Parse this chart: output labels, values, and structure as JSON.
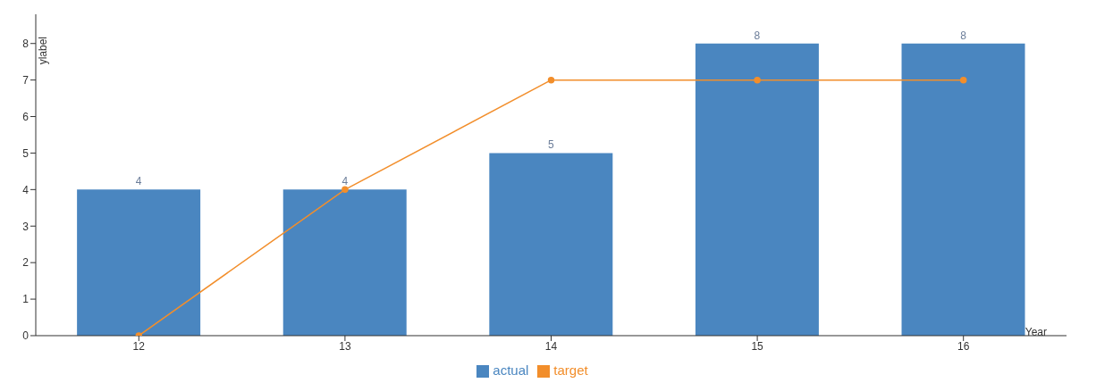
{
  "chart_data": {
    "type": "bar",
    "xlabel": "Year",
    "ylabel": "ylabel",
    "categories": [
      "12",
      "13",
      "14",
      "15",
      "16"
    ],
    "series": [
      {
        "name": "actual",
        "color": "#4a86c0",
        "values": [
          4,
          4,
          5,
          8,
          8
        ],
        "value_labels": [
          "4",
          "4",
          "5",
          "8",
          "8"
        ]
      },
      {
        "name": "target",
        "type": "line",
        "color": "#f28e2b",
        "values": [
          0,
          4,
          7,
          7,
          7
        ],
        "marker": "circle"
      }
    ],
    "ylim": [
      0,
      8.8
    ],
    "yticks": [
      0,
      1,
      2,
      3,
      4,
      5,
      6,
      7,
      8
    ],
    "grid": false,
    "legend": "bottom"
  }
}
